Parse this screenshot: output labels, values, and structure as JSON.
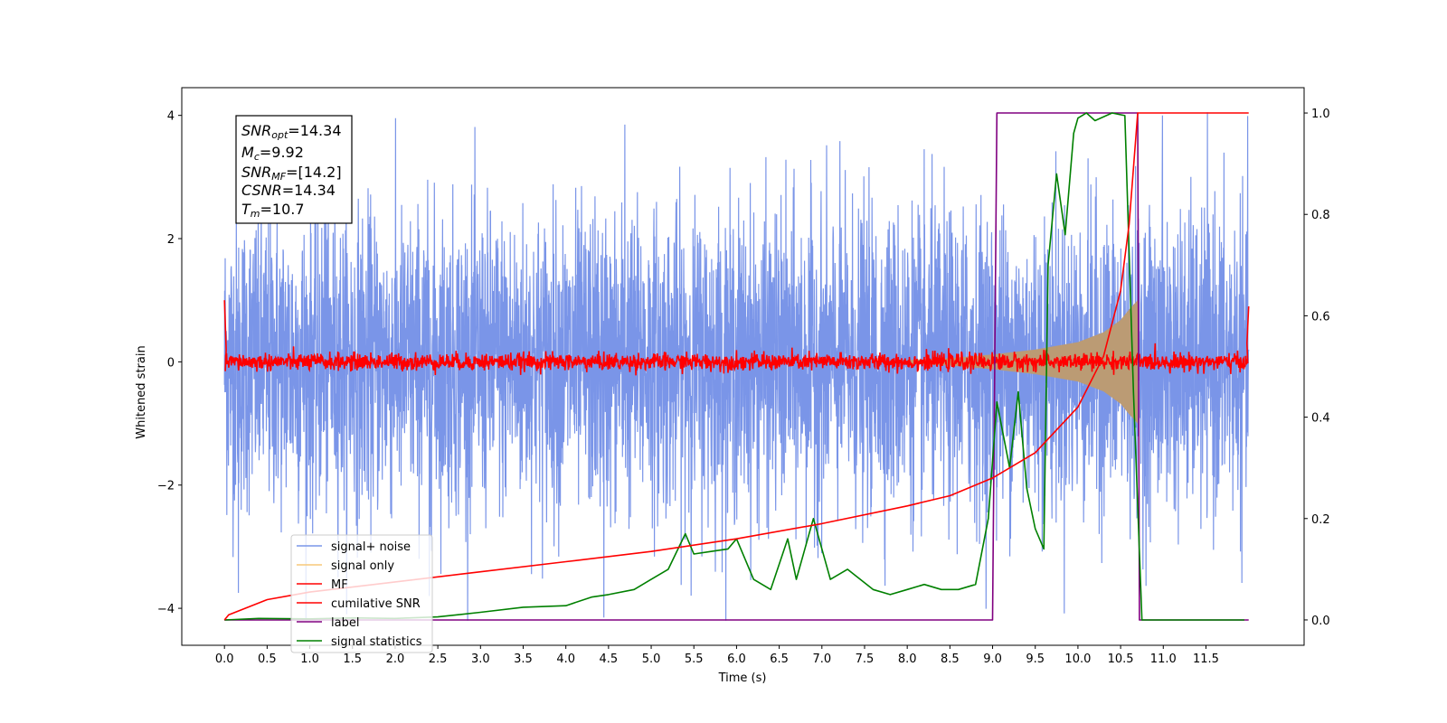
{
  "chart_data": {
    "type": "line",
    "xlabel": "Time (s)",
    "ylabel": "Whitened strain",
    "xlim": [
      -0.5,
      12.65
    ],
    "ylim": [
      -4.6,
      4.45
    ],
    "ylim_right": [
      -0.05,
      1.05
    ],
    "x_ticks": [
      "0.0",
      "0.5",
      "1.0",
      "1.5",
      "2.0",
      "2.5",
      "3.0",
      "3.5",
      "4.0",
      "4.5",
      "5.0",
      "5.5",
      "6.0",
      "6.5",
      "7.0",
      "7.5",
      "8.0",
      "8.5",
      "9.0",
      "9.5",
      "10.0",
      "10.5",
      "11.0",
      "11.5"
    ],
    "y_ticks": [
      "4",
      "2",
      "0",
      "−2",
      "−4"
    ],
    "y_ticks_right": [
      "1.0",
      "0.8",
      "0.6",
      "0.4",
      "0.2",
      "0.0"
    ],
    "legend_position": "lower-left",
    "annotation": {
      "snr_opt": {
        "sym": "SNR",
        "sub": "opt",
        "value": "=14.34"
      },
      "mc": {
        "sym": "M",
        "sub": "c",
        "value": "=9.92"
      },
      "snr_mf": {
        "sym": "SNR",
        "sub": "MF",
        "value": "=[14.2]"
      },
      "csnr": {
        "sym": "CSNR",
        "sub": "",
        "value": "=14.34"
      },
      "tm": {
        "sym": "T",
        "sub": "m",
        "value": "=10.7"
      }
    },
    "series": [
      {
        "name": "signal+ noise",
        "color": "#7a95e8",
        "axis": "left",
        "noise_sigma": 1.05,
        "x_range": [
          0.0,
          12.0
        ]
      },
      {
        "name": "signal only",
        "color": "#f7c97a",
        "fill_color": "#bb9b74",
        "axis": "left",
        "envelope": [
          [
            8.0,
            0.03
          ],
          [
            8.5,
            0.06
          ],
          [
            9.0,
            0.12
          ],
          [
            9.5,
            0.2
          ],
          [
            10.0,
            0.32
          ],
          [
            10.3,
            0.48
          ],
          [
            10.5,
            0.68
          ],
          [
            10.6,
            0.85
          ],
          [
            10.7,
            1.0
          ]
        ]
      },
      {
        "name": "MF",
        "color": "#ff0000",
        "axis": "left",
        "noise_sigma": 0.07,
        "x_range": [
          0.0,
          12.0
        ]
      },
      {
        "name": "cumilative SNR",
        "color": "#ff0000",
        "axis": "right",
        "x": [
          0.0,
          0.05,
          0.5,
          1.0,
          2.0,
          3.0,
          4.0,
          5.0,
          6.0,
          7.0,
          8.0,
          8.5,
          9.0,
          9.5,
          10.0,
          10.3,
          10.5,
          10.6,
          10.7,
          12.0
        ],
        "y": [
          0.0,
          0.01,
          0.04,
          0.055,
          0.075,
          0.095,
          0.115,
          0.135,
          0.16,
          0.19,
          0.225,
          0.245,
          0.28,
          0.33,
          0.42,
          0.52,
          0.65,
          0.78,
          1.0,
          1.0
        ]
      },
      {
        "name": "label",
        "color": "#800080",
        "axis": "right",
        "x": [
          0.0,
          9.0,
          9.05,
          10.7,
          10.72,
          12.0
        ],
        "y": [
          0.0,
          0.0,
          1.0,
          1.0,
          0.0,
          0.0
        ]
      },
      {
        "name": "signal statistics",
        "color": "#008000",
        "axis": "right",
        "x": [
          0.0,
          0.4,
          1.0,
          1.5,
          2.0,
          2.5,
          3.0,
          3.5,
          4.0,
          4.3,
          4.5,
          4.8,
          5.0,
          5.2,
          5.4,
          5.5,
          5.7,
          5.9,
          6.0,
          6.2,
          6.4,
          6.6,
          6.7,
          6.9,
          7.1,
          7.3,
          7.6,
          7.8,
          8.0,
          8.2,
          8.4,
          8.6,
          8.8,
          8.95,
          9.05,
          9.2,
          9.3,
          9.4,
          9.5,
          9.6,
          9.65,
          9.75,
          9.85,
          9.95,
          10.0,
          10.1,
          10.2,
          10.4,
          10.55,
          10.65,
          10.75,
          11.0,
          11.5,
          11.95
        ],
        "y": [
          0.0,
          0.003,
          0.002,
          0.004,
          0.003,
          0.006,
          0.015,
          0.025,
          0.028,
          0.045,
          0.05,
          0.06,
          0.08,
          0.1,
          0.17,
          0.13,
          0.135,
          0.14,
          0.16,
          0.08,
          0.06,
          0.16,
          0.08,
          0.2,
          0.08,
          0.1,
          0.06,
          0.05,
          0.06,
          0.07,
          0.06,
          0.06,
          0.07,
          0.2,
          0.43,
          0.3,
          0.45,
          0.26,
          0.18,
          0.14,
          0.7,
          0.88,
          0.76,
          0.96,
          0.99,
          1.0,
          0.985,
          1.0,
          0.995,
          0.45,
          0.0,
          0.0,
          0.0,
          0.0
        ]
      }
    ]
  }
}
